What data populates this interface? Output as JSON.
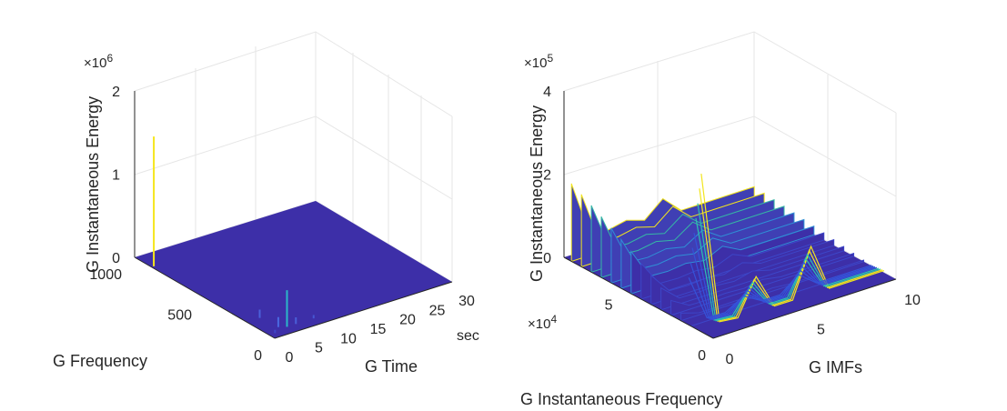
{
  "chart_data": [
    {
      "type": "surface",
      "xlabel": "G Time",
      "x_unit_label": "sec",
      "ylabel": "G Frequency",
      "zlabel": "G Instantaneous Energy",
      "z_exponent_label": "×10",
      "z_exponent_power": "6",
      "xticks": [
        "0",
        "5",
        "10",
        "15",
        "20",
        "25",
        "30"
      ],
      "yticks": [
        "0",
        "500",
        "1000"
      ],
      "zticks": [
        "0",
        "1",
        "2"
      ],
      "xlim": [
        0,
        30
      ],
      "ylim": [
        0,
        1000
      ],
      "zlim": [
        0,
        2000000
      ],
      "spikes": [
        {
          "x": 1,
          "y": 40,
          "z": 0.02,
          "color": "#3f45c8"
        },
        {
          "x": 2.5,
          "y": 80,
          "z": 0.06,
          "color": "#4a68e0"
        },
        {
          "x": 3.5,
          "y": 60,
          "z": 0.22,
          "color": "#2bb7c8"
        },
        {
          "x": 5,
          "y": 60,
          "z": 0.04,
          "color": "#4a5fd8"
        },
        {
          "x": 8,
          "y": 60,
          "z": 0.02,
          "color": "#4656d2"
        },
        {
          "x": 2.2,
          "y": 200,
          "z": 0.05,
          "color": "#4a60da"
        },
        {
          "x": 0.4,
          "y": 880,
          "z": 0.78,
          "color": "#f5e61c"
        }
      ]
    },
    {
      "type": "surface",
      "xlabel": "G IMFs",
      "ylabel": "G Instantaneous Frequency",
      "y_exponent_label": "×10",
      "y_exponent_power": "4",
      "zlabel": "G Instantaneous Energy",
      "z_exponent_label": "×10",
      "z_exponent_power": "5",
      "xticks": [
        "0",
        "5",
        "10"
      ],
      "yticks": [
        "0",
        "5"
      ],
      "zticks": [
        "0",
        "2",
        "4"
      ],
      "xlim": [
        0,
        10
      ],
      "ylim": [
        0,
        80000
      ],
      "zlim": [
        0,
        400000
      ],
      "back_profile": [
        4.0,
        1.1,
        1.0,
        1.2,
        0.9,
        1.7,
        0.8,
        0.8,
        0.8,
        0.8,
        0.8
      ],
      "front_profile": [
        3.8,
        0.1,
        0.05,
        0.9,
        0.05,
        0.05,
        1.2,
        0.05,
        0.05,
        0.05,
        0.05
      ]
    }
  ]
}
